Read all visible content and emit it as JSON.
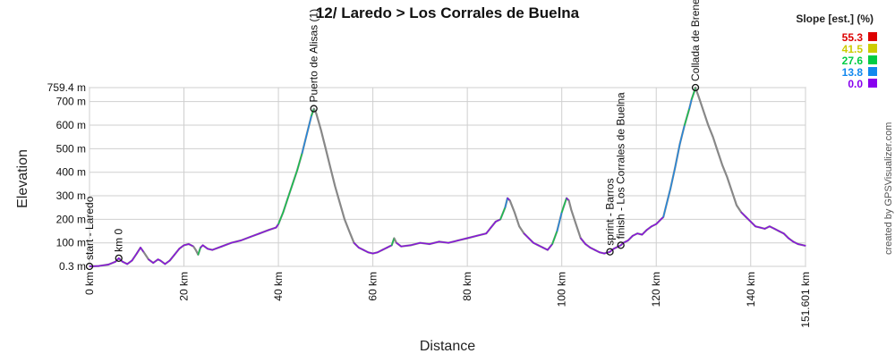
{
  "chart_data": {
    "type": "area",
    "title": "12/ Laredo > Los Corrales de Buelna",
    "xlabel": "Distance",
    "ylabel": "Elevation",
    "xlim": [
      0,
      151.601
    ],
    "ylim": [
      0.3,
      759.4
    ],
    "x_ticks": [
      {
        "value": 0,
        "label": "0 km"
      },
      {
        "value": 20,
        "label": "20 km"
      },
      {
        "value": 40,
        "label": "40 km"
      },
      {
        "value": 60,
        "label": "60 km"
      },
      {
        "value": 80,
        "label": "80 km"
      },
      {
        "value": 100,
        "label": "100 km"
      },
      {
        "value": 120,
        "label": "120 km"
      },
      {
        "value": 140,
        "label": "140 km"
      },
      {
        "value": 151.601,
        "label": "151.601 km"
      }
    ],
    "y_ticks": [
      {
        "value": 0.3,
        "label": "0.3 m"
      },
      {
        "value": 100,
        "label": "100 m"
      },
      {
        "value": 200,
        "label": "200 m"
      },
      {
        "value": 300,
        "label": "300 m"
      },
      {
        "value": 400,
        "label": "400 m"
      },
      {
        "value": 500,
        "label": "500 m"
      },
      {
        "value": 600,
        "label": "600 m"
      },
      {
        "value": 700,
        "label": "700 m"
      },
      {
        "value": 759.4,
        "label": "759.4 m"
      }
    ],
    "grid": true,
    "legend": {
      "title": "Slope [est.] (%)",
      "placement": "top-right",
      "items": [
        {
          "label": "55.3",
          "color": "#dd0000"
        },
        {
          "label": "41.5",
          "color": "#cccc00"
        },
        {
          "label": "27.6",
          "color": "#00cc44"
        },
        {
          "label": "13.8",
          "color": "#1188ee"
        },
        {
          "label": "0.0",
          "color": "#8800ee"
        }
      ]
    },
    "line_color": "#888888",
    "waypoints": [
      {
        "label": "start - Laredo",
        "x": 0,
        "y": 0.3
      },
      {
        "label": "km 0",
        "x": 6.2,
        "y": 35
      },
      {
        "label": "Puerto de Alisas (1)",
        "x": 47.5,
        "y": 670
      },
      {
        "label": "sprint - Barros",
        "x": 110.2,
        "y": 62
      },
      {
        "label": "finish - Los Corrales de Buelna",
        "x": 112.5,
        "y": 90
      },
      {
        "label": "Collada de Brenes",
        "x": 128.3,
        "y": 759.4
      }
    ],
    "profile": [
      [
        0,
        0.3
      ],
      [
        2,
        2
      ],
      [
        4,
        8
      ],
      [
        5.5,
        20
      ],
      [
        6.2,
        35
      ],
      [
        7,
        20
      ],
      [
        8,
        10
      ],
      [
        9,
        25
      ],
      [
        10,
        55
      ],
      [
        10.8,
        80
      ],
      [
        11.5,
        60
      ],
      [
        12.5,
        30
      ],
      [
        13.5,
        15
      ],
      [
        14.5,
        30
      ],
      [
        15,
        25
      ],
      [
        16,
        10
      ],
      [
        17,
        25
      ],
      [
        18,
        50
      ],
      [
        19,
        75
      ],
      [
        20,
        90
      ],
      [
        21,
        95
      ],
      [
        22,
        85
      ],
      [
        22.5,
        70
      ],
      [
        23,
        50
      ],
      [
        23.5,
        80
      ],
      [
        24,
        90
      ],
      [
        25,
        75
      ],
      [
        26,
        70
      ],
      [
        28,
        85
      ],
      [
        30,
        100
      ],
      [
        32,
        110
      ],
      [
        34,
        125
      ],
      [
        36,
        140
      ],
      [
        38,
        155
      ],
      [
        39.5,
        165
      ],
      [
        40,
        180
      ],
      [
        41,
        230
      ],
      [
        42,
        290
      ],
      [
        43,
        350
      ],
      [
        44,
        410
      ],
      [
        45,
        480
      ],
      [
        46,
        560
      ],
      [
        47,
        640
      ],
      [
        47.5,
        670
      ],
      [
        48,
        650
      ],
      [
        49,
        580
      ],
      [
        50,
        500
      ],
      [
        51,
        420
      ],
      [
        52,
        340
      ],
      [
        53,
        270
      ],
      [
        54,
        200
      ],
      [
        55,
        150
      ],
      [
        56,
        100
      ],
      [
        57,
        80
      ],
      [
        58,
        70
      ],
      [
        59,
        60
      ],
      [
        60,
        55
      ],
      [
        61,
        60
      ],
      [
        62,
        70
      ],
      [
        63,
        80
      ],
      [
        64,
        90
      ],
      [
        64.5,
        120
      ],
      [
        65,
        100
      ],
      [
        66,
        85
      ],
      [
        68,
        90
      ],
      [
        70,
        100
      ],
      [
        72,
        95
      ],
      [
        74,
        105
      ],
      [
        76,
        100
      ],
      [
        78,
        110
      ],
      [
        80,
        120
      ],
      [
        82,
        130
      ],
      [
        84,
        140
      ],
      [
        85,
        165
      ],
      [
        86,
        190
      ],
      [
        87,
        200
      ],
      [
        88,
        250
      ],
      [
        88.5,
        290
      ],
      [
        89,
        280
      ],
      [
        90,
        230
      ],
      [
        91,
        170
      ],
      [
        92,
        140
      ],
      [
        93,
        120
      ],
      [
        94,
        100
      ],
      [
        95,
        90
      ],
      [
        96,
        80
      ],
      [
        97,
        70
      ],
      [
        98,
        95
      ],
      [
        99,
        150
      ],
      [
        100,
        230
      ],
      [
        101,
        290
      ],
      [
        101.5,
        280
      ],
      [
        102,
        240
      ],
      [
        103,
        180
      ],
      [
        104,
        120
      ],
      [
        105,
        95
      ],
      [
        106,
        80
      ],
      [
        107,
        70
      ],
      [
        108,
        60
      ],
      [
        109,
        55
      ],
      [
        110.2,
        62
      ],
      [
        111,
        75
      ],
      [
        112.5,
        90
      ],
      [
        113,
        100
      ],
      [
        114,
        110
      ],
      [
        115,
        130
      ],
      [
        116,
        140
      ],
      [
        117,
        135
      ],
      [
        118,
        155
      ],
      [
        119,
        170
      ],
      [
        120,
        180
      ],
      [
        121,
        200
      ],
      [
        121.5,
        210
      ],
      [
        122,
        250
      ],
      [
        123,
        330
      ],
      [
        124,
        420
      ],
      [
        125,
        520
      ],
      [
        126,
        600
      ],
      [
        127,
        670
      ],
      [
        127.5,
        710
      ],
      [
        128,
        740
      ],
      [
        128.3,
        759.4
      ],
      [
        129,
        720
      ],
      [
        130,
        660
      ],
      [
        131,
        600
      ],
      [
        132,
        550
      ],
      [
        133,
        490
      ],
      [
        134,
        430
      ],
      [
        135,
        380
      ],
      [
        136,
        320
      ],
      [
        137,
        260
      ],
      [
        138,
        230
      ],
      [
        139,
        210
      ],
      [
        140,
        190
      ],
      [
        141,
        170
      ],
      [
        142,
        165
      ],
      [
        143,
        160
      ],
      [
        144,
        170
      ],
      [
        145,
        160
      ],
      [
        146,
        150
      ],
      [
        147,
        140
      ],
      [
        148,
        120
      ],
      [
        149,
        105
      ],
      [
        150,
        95
      ],
      [
        151.601,
        88
      ]
    ]
  },
  "watermark": "created by GPSVisualizer.com"
}
